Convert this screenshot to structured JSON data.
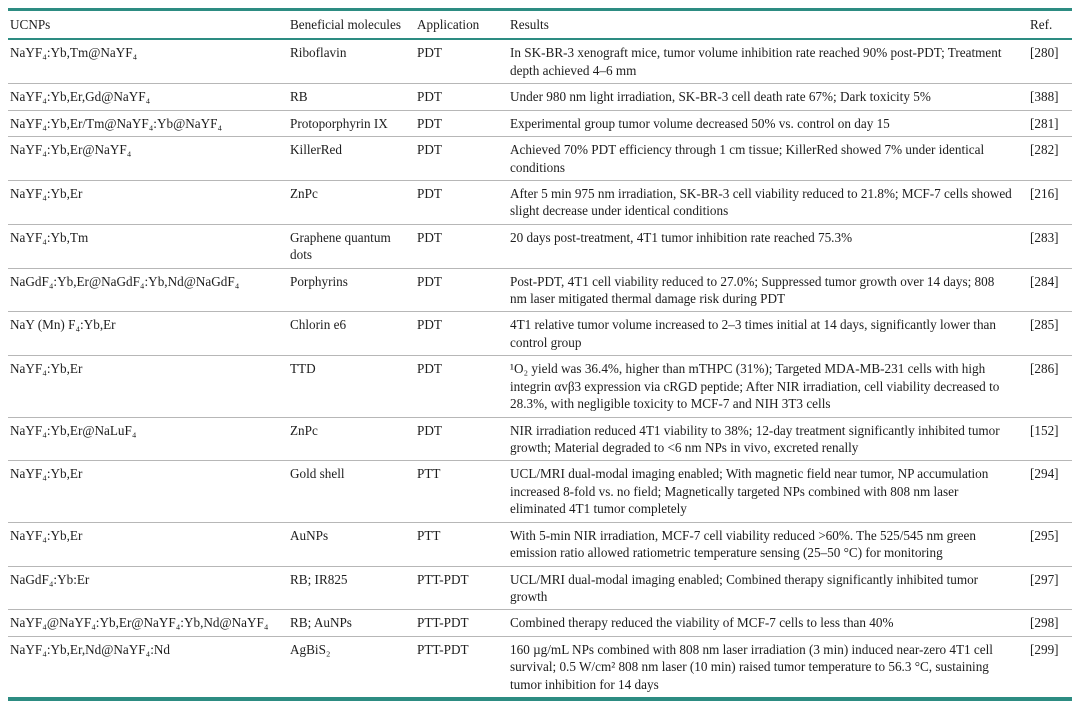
{
  "colors": {
    "accent": "#2d8c82",
    "divider": "#b7b7b7",
    "text": "#1d1d1d"
  },
  "table": {
    "columns": [
      "UCNPs",
      "Beneficial molecules",
      "Application",
      "Results",
      "Ref."
    ],
    "rows": [
      {
        "ucnp": "NaYF₄:Yb,Tm@NaYF₄",
        "molecule": "Riboflavin",
        "application": "PDT",
        "result": "In SK-BR-3 xenograft mice, tumor volume inhibition rate reached 90% post-PDT; Treatment depth achieved 4–6 mm",
        "ref": "[280]"
      },
      {
        "ucnp": "NaYF₄:Yb,Er,Gd@NaYF₄",
        "molecule": "RB",
        "application": "PDT",
        "result": "Under 980 nm light irradiation, SK-BR-3 cell death rate 67%; Dark toxicity 5%",
        "ref": "[388]"
      },
      {
        "ucnp": "NaYF₄:Yb,Er/Tm@NaYF₄:Yb@NaYF₄",
        "molecule": "Protoporphyrin IX",
        "application": "PDT",
        "result": "Experimental group tumor volume decreased 50% vs. control on day 15",
        "ref": "[281]"
      },
      {
        "ucnp": "NaYF₄:Yb,Er@NaYF₄",
        "molecule": "KillerRed",
        "application": "PDT",
        "result": "Achieved 70% PDT efficiency through 1 cm tissue; KillerRed showed 7% under identical conditions",
        "ref": "[282]"
      },
      {
        "ucnp": "NaYF₄:Yb,Er",
        "molecule": "ZnPc",
        "application": "PDT",
        "result": "After 5 min 975 nm irradiation, SK-BR-3 cell viability reduced to 21.8%; MCF-7 cells showed slight decrease under identical conditions",
        "ref": "[216]"
      },
      {
        "ucnp": "NaYF₄:Yb,Tm",
        "molecule": "Graphene quantum dots",
        "application": "PDT",
        "result": "20 days post-treatment, 4T1 tumor inhibition rate reached 75.3%",
        "ref": "[283]"
      },
      {
        "ucnp": "NaGdF₄:Yb,Er@NaGdF₄:Yb,Nd@NaGdF₄",
        "molecule": "Porphyrins",
        "application": "PDT",
        "result": "Post-PDT, 4T1 cell viability reduced to 27.0%; Suppressed tumor growth over 14 days; 808 nm laser mitigated thermal damage risk during PDT",
        "ref": "[284]"
      },
      {
        "ucnp": "NaY (Mn) F₄:Yb,Er",
        "molecule": "Chlorin e6",
        "application": "PDT",
        "result": "4T1 relative tumor volume increased to 2–3 times initial at 14 days, significantly lower than control group",
        "ref": "[285]"
      },
      {
        "ucnp": "NaYF₄:Yb,Er",
        "molecule": "TTD",
        "application": "PDT",
        "result": "¹O₂ yield was 36.4%, higher than mTHPC (31%); Targeted MDA-MB-231 cells with high integrin αvβ3 expression via cRGD peptide; After NIR irradiation, cell viability decreased to 28.3%, with negligible toxicity to MCF-7 and NIH 3T3 cells",
        "ref": "[286]"
      },
      {
        "ucnp": "NaYF₄:Yb,Er@NaLuF₄",
        "molecule": "ZnPc",
        "application": "PDT",
        "result": "NIR irradiation reduced 4T1 viability to 38%; 12-day treatment significantly inhibited tumor growth; Material degraded to <6 nm NPs in vivo, excreted renally",
        "ref": "[152]"
      },
      {
        "ucnp": "NaYF₄:Yb,Er",
        "molecule": "Gold shell",
        "application": "PTT",
        "result": "UCL/MRI dual-modal imaging enabled; With magnetic field near tumor, NP accumulation increased 8-fold vs. no field; Magnetically targeted NPs combined with 808 nm laser eliminated 4T1 tumor completely",
        "ref": "[294]"
      },
      {
        "ucnp": "NaYF₄:Yb,Er",
        "molecule": "AuNPs",
        "application": "PTT",
        "result": "With 5-min NIR irradiation, MCF-7 cell viability reduced >60%. The 525/545 nm green emission ratio allowed ratiometric temperature sensing (25–50 °C) for monitoring",
        "ref": "[295]"
      },
      {
        "ucnp": "NaGdF₄:Yb:Er",
        "molecule": "RB; IR825",
        "application": "PTT-PDT",
        "result": "UCL/MRI dual-modal imaging enabled; Combined therapy significantly inhibited tumor growth",
        "ref": "[297]"
      },
      {
        "ucnp": "NaYF₄@NaYF₄:Yb,Er@NaYF₄:Yb,Nd@NaYF₄",
        "molecule": "RB; AuNPs",
        "application": "PTT-PDT",
        "result": "Combined therapy reduced the viability of MCF-7 cells to less than 40%",
        "ref": "[298]"
      },
      {
        "ucnp": "NaYF₄:Yb,Er,Nd@NaYF₄:Nd",
        "molecule": "AgBiS₂",
        "application": "PTT-PDT",
        "result": "160 µg/mL NPs combined with 808 nm laser irradiation (3 min) induced near-zero 4T1 cell survival; 0.5 W/cm² 808 nm laser (10 min) raised tumor temperature to 56.3 °C, sustaining tumor inhibition for 14 days",
        "ref": "[299]"
      }
    ]
  }
}
